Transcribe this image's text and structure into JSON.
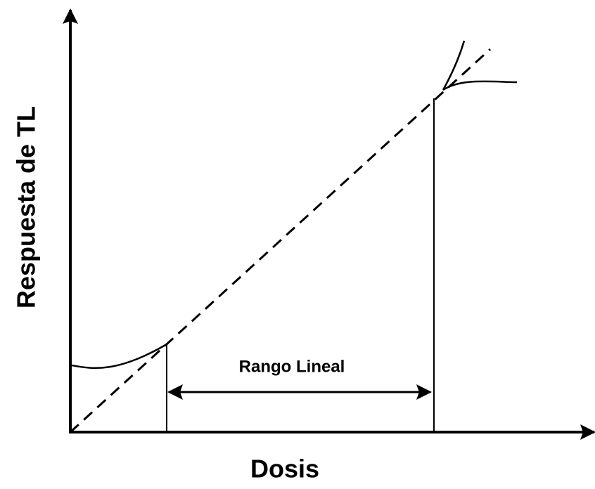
{
  "y_axis_label": "Respuesta de TL",
  "x_axis_label": "Dosis",
  "annotation": "Rango Lineal"
}
